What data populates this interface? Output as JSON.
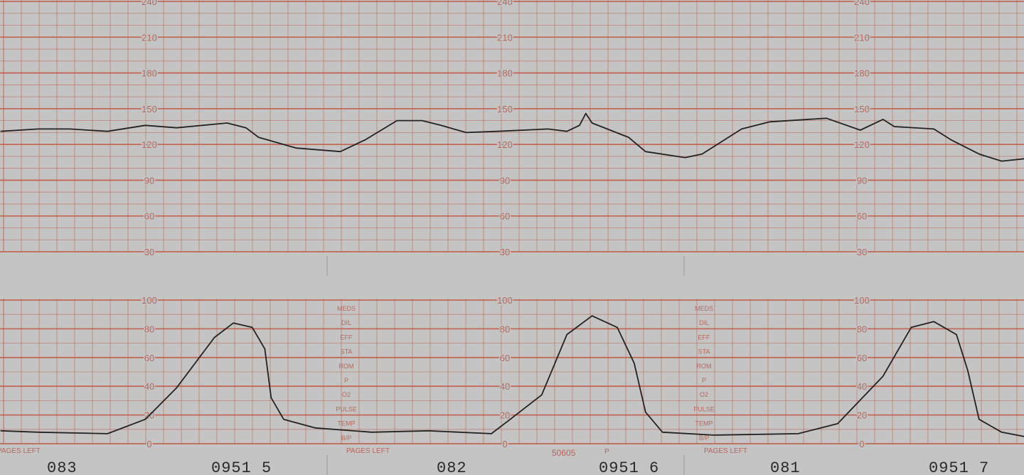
{
  "colors": {
    "paper": "#c4c4c4",
    "grid": "#c0604a",
    "trace": "#222222",
    "print": "#2a2a2a"
  },
  "chart_data": [
    {
      "type": "line",
      "panel": "fetal-heart-rate",
      "ylim": [
        30,
        240
      ],
      "yticks": [
        "240",
        "210",
        "180",
        "150",
        "120",
        "90",
        "60",
        "30"
      ],
      "grid": true,
      "x": [
        "09:14:22",
        "09:14:28",
        "09:14:33",
        "09:14:39",
        "09:14:45",
        "09:14:50",
        "09:14:58",
        "09:15:01",
        "09:15:03",
        "09:15:09",
        "09:15:16",
        "09:15:20",
        "09:15:25",
        "09:15:29",
        "09:15:32",
        "09:15:36",
        "09:15:41",
        "09:15:49",
        "09:15:52",
        "09:15:54",
        "09:15:55",
        "09:15:56",
        "09:16:02",
        "09:16:05",
        "09:16:12",
        "09:16:15",
        "09:16:22",
        "09:16:27",
        "09:16:37",
        "09:16:43",
        "09:16:47",
        "09:16:49",
        "09:16:56",
        "09:16:59",
        "09:17:04",
        "09:17:08",
        "09:17:12"
      ],
      "values": [
        131,
        133,
        133,
        131,
        136,
        134,
        138,
        134,
        126,
        117,
        114,
        124,
        140,
        140,
        136,
        130,
        131,
        133,
        131,
        136,
        146,
        138,
        126,
        114,
        109,
        112,
        133,
        139,
        142,
        132,
        141,
        135,
        133,
        124,
        112,
        106,
        108
      ]
    },
    {
      "type": "line",
      "panel": "uterine-activity",
      "ylim": [
        0,
        100
      ],
      "yticks": [
        "100",
        "80",
        "60",
        "40",
        "20",
        "0"
      ],
      "grid": true,
      "x": [
        "09:14:22",
        "09:14:28",
        "09:14:39",
        "09:14:45",
        "09:14:50",
        "09:14:56",
        "09:14:59",
        "09:15:02",
        "09:15:04",
        "09:15:05",
        "09:15:07",
        "09:15:12",
        "09:15:21",
        "09:15:30",
        "09:15:40",
        "09:15:43",
        "09:15:48",
        "09:15:52",
        "09:15:56",
        "09:16:00",
        "09:16:03",
        "09:16:05",
        "09:16:08",
        "09:16:17",
        "09:16:32",
        "09:16:39",
        "09:16:47",
        "09:16:52",
        "09:16:56",
        "09:17:00",
        "09:17:02",
        "09:17:04",
        "09:17:08",
        "09:17:12"
      ],
      "values": [
        9,
        8,
        7,
        17,
        39,
        74,
        84,
        81,
        66,
        32,
        17,
        11,
        8,
        9,
        7,
        17,
        34,
        76,
        89,
        81,
        56,
        22,
        8,
        6,
        7,
        14,
        47,
        81,
        85,
        76,
        51,
        17,
        8,
        5
      ]
    }
  ],
  "side_labels": [
    "MEDS",
    "DIL",
    "EFF",
    "STA",
    "ROM",
    "P",
    "O2",
    "PULSE",
    "TEMP",
    "B/P"
  ],
  "pages_left_label": "PAGES LEFT",
  "pages": [
    "083",
    "082",
    "081"
  ],
  "time_labels": [
    "09:15",
    "09:16",
    "09:17"
  ],
  "time_label_display": [
    "0951 5",
    "0951 6",
    "0951 7"
  ],
  "serial": "50605",
  "serial_mark": "P"
}
